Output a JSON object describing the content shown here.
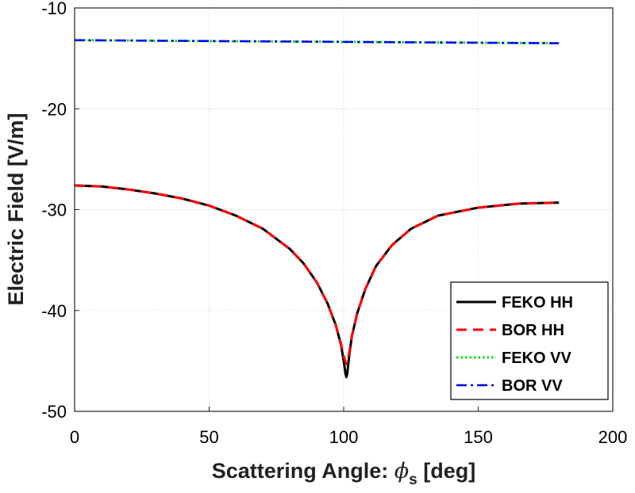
{
  "chart_data": {
    "type": "line",
    "title": "",
    "xlabel": "Scattering Angle: ϕs [deg]",
    "xlabel_main": "Scattering Angle: ",
    "xlabel_symbol": "ϕ",
    "xlabel_subscript": "s",
    "xlabel_unit": " [deg]",
    "ylabel": "Electric Field [V/m]",
    "xlim": [
      0,
      200
    ],
    "ylim": [
      -50,
      -10
    ],
    "xticks": [
      0,
      50,
      100,
      150,
      200
    ],
    "yticks": [
      -50,
      -40,
      -30,
      -20,
      -10
    ],
    "xtick_labels": [
      "0",
      "50",
      "100",
      "150",
      "200"
    ],
    "ytick_labels": [
      "-50",
      "-40",
      "-30",
      "-20",
      "-10"
    ],
    "grid": true,
    "legend_position": "bottom-right",
    "series": [
      {
        "name": "FEKO HH",
        "color": "#000000",
        "style": "solid",
        "x": [
          0,
          10,
          20,
          30,
          40,
          50,
          60,
          70,
          80,
          85,
          90,
          94,
          97,
          99,
          100,
          100.7,
          101,
          101.3,
          102,
          103,
          105,
          108,
          112,
          118,
          125,
          135,
          150,
          165,
          180
        ],
        "y": [
          -27.6,
          -27.7,
          -28.0,
          -28.4,
          -28.9,
          -29.6,
          -30.6,
          -31.9,
          -33.9,
          -35.3,
          -37.2,
          -39.3,
          -41.4,
          -43.4,
          -45.0,
          -46.3,
          -46.6,
          -46.3,
          -44.6,
          -42.6,
          -40.3,
          -37.9,
          -35.6,
          -33.5,
          -31.9,
          -30.6,
          -29.8,
          -29.4,
          -29.3
        ]
      },
      {
        "name": "BOR HH",
        "color": "#ff0000",
        "style": "dashed",
        "x": [
          0,
          10,
          20,
          30,
          40,
          50,
          60,
          70,
          80,
          85,
          90,
          94,
          97,
          99,
          100,
          100.7,
          101,
          101.3,
          102,
          103,
          105,
          108,
          112,
          118,
          125,
          135,
          150,
          165,
          180
        ],
        "y": [
          -27.6,
          -27.7,
          -28.0,
          -28.4,
          -28.9,
          -29.6,
          -30.6,
          -31.9,
          -33.9,
          -35.3,
          -37.2,
          -39.3,
          -41.4,
          -43.3,
          -44.5,
          -45.1,
          -45.3,
          -45.1,
          -44.3,
          -42.6,
          -40.3,
          -37.9,
          -35.6,
          -33.5,
          -31.9,
          -30.6,
          -29.8,
          -29.4,
          -29.3
        ]
      },
      {
        "name": "FEKO VV",
        "color": "#00dd00",
        "style": "dotted",
        "x": [
          0,
          60,
          120,
          180
        ],
        "y": [
          -13.2,
          -13.3,
          -13.4,
          -13.5
        ]
      },
      {
        "name": "BOR VV",
        "color": "#0000ff",
        "style": "dashdot",
        "x": [
          0,
          60,
          120,
          180
        ],
        "y": [
          -13.2,
          -13.3,
          -13.4,
          -13.5
        ]
      }
    ]
  }
}
